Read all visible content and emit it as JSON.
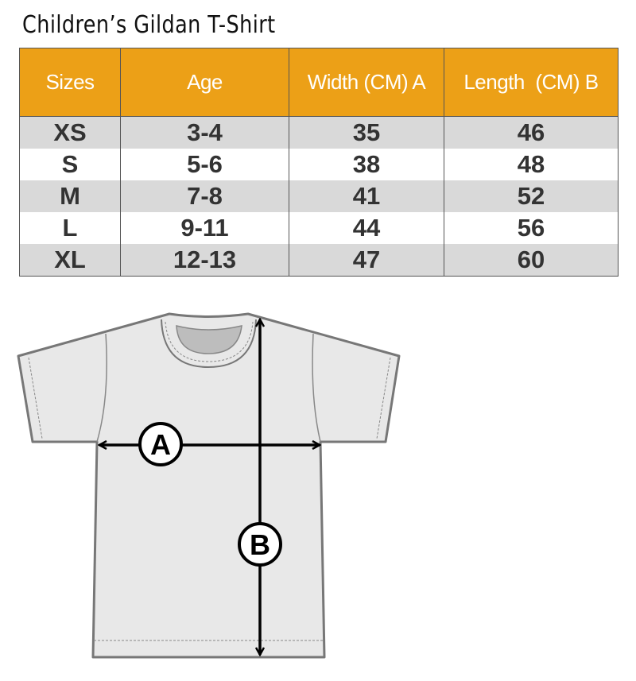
{
  "title": "Children’s Gildan T-Shirt",
  "table": {
    "headers": [
      "Sizes",
      "Age",
      "Width (CM) A",
      "Length  (CM) B"
    ],
    "rows": [
      [
        "XS",
        "3-4",
        "35",
        "46"
      ],
      [
        "S",
        "5-6",
        "38",
        "48"
      ],
      [
        "M",
        "7-8",
        "41",
        "52"
      ],
      [
        "L",
        "9-11",
        "44",
        "56"
      ],
      [
        "XL",
        "12-13",
        "47",
        "60"
      ]
    ]
  },
  "diagram": {
    "label_a": "A",
    "label_b": "B"
  },
  "colors": {
    "header": "#eca017",
    "stripe": "#d9d9d9",
    "shirt": "#e8e8e8"
  }
}
